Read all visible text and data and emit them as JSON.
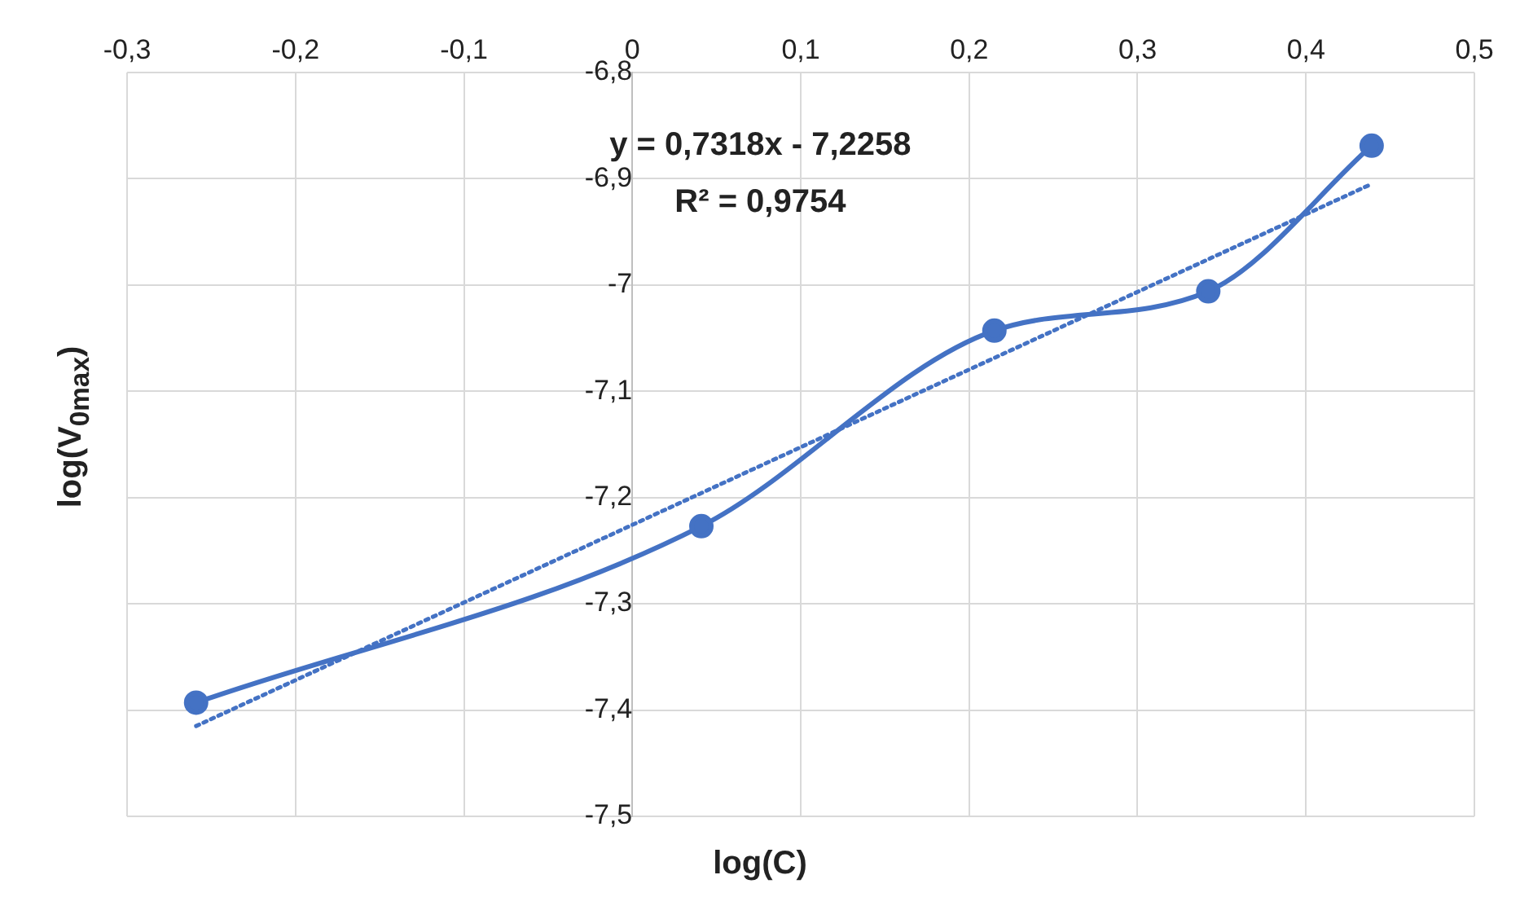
{
  "chart_data": {
    "type": "line",
    "xlabel": "log(C)",
    "ylabel": "log(V$_{0max}$)",
    "xlim": [
      -0.3,
      0.5
    ],
    "xticks": [
      {
        "value": -0.3,
        "label": "-0,3"
      },
      {
        "value": -0.2,
        "label": "-0,2"
      },
      {
        "value": -0.1,
        "label": "-0,1"
      },
      0,
      {
        "value": 0.1,
        "label": "0,1"
      },
      {
        "value": 0.2,
        "label": "0,2"
      },
      {
        "value": 0.3,
        "label": "0,3"
      },
      {
        "value": 0.4,
        "label": "0,4"
      },
      {
        "value": 0.5,
        "label": "0,5"
      }
    ],
    "ylim": [
      -7.5,
      -6.8
    ],
    "yticks": [
      {
        "value": -7.5,
        "label": "-7,5"
      },
      {
        "value": -7.4,
        "label": "-7,4"
      },
      {
        "value": -7.3,
        "label": "-7,3"
      },
      {
        "value": -7.2,
        "label": "-7,2"
      },
      {
        "value": -7.1,
        "label": "-7,1"
      },
      -7,
      {
        "value": -6.9,
        "label": "-6,9"
      },
      {
        "value": -6.8,
        "label": "-6,8"
      }
    ],
    "grid": true,
    "legend": false,
    "series": [
      {
        "color": "#4472c4",
        "marker": "circle",
        "line_style": "solid",
        "x": [
          -0.259,
          0.041,
          0.215,
          0.342,
          0.439
        ],
        "values": [
          -7.393,
          -7.227,
          -7.043,
          -7.006,
          -6.869
        ]
      },
      {
        "type": "line",
        "color": "#4472c4",
        "marker": "none",
        "line_style": "dotted",
        "x": [
          -0.259,
          0.439
        ],
        "values": [
          -7.415,
          -6.905
        ]
      }
    ],
    "annotations": [
      "y = 0,7318x - 7,2258",
      "R² = 0,9754"
    ]
  }
}
